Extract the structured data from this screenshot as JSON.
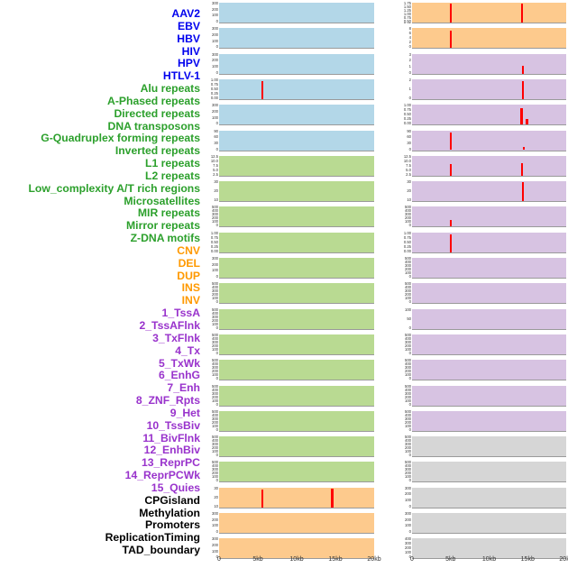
{
  "figure": {
    "background": "#ffffff",
    "spike_color": "#ff0000",
    "group_colors": {
      "virus_label": "#0000ee",
      "repeat_label": "#2ca02c",
      "sv_label": "#ff9900",
      "chromatin_label": "#9933cc",
      "other_label": "#000000",
      "virus_fill": "#b3d7e8",
      "repeat_fill": "#b9da92",
      "sv_fill": "#fdca8d",
      "chromatin_fill": "#d7c3e2",
      "other_fill": "#d6d6d6"
    }
  },
  "chart_data": {
    "type": "area",
    "title": "",
    "xlabel": "",
    "ylabel": "",
    "x_range_kb": [
      0,
      20
    ],
    "x_tick_labels": [
      "0",
      "5kb",
      "10kb",
      "15kb",
      "20kb"
    ],
    "x_tick_positions_kb": [
      0,
      5,
      10,
      15,
      20
    ],
    "layout": {
      "columns": 2,
      "rows_per_column": 22,
      "order": "column-major",
      "grid": false,
      "legend": "none"
    },
    "tracks": [
      {
        "label": "AAV2",
        "group": "virus",
        "label_color": "#0000ee",
        "fill": "#b3d7e8",
        "y_ticks": [
          "300",
          "200",
          "100",
          "0"
        ],
        "spikes": []
      },
      {
        "label": "EBV",
        "group": "virus",
        "label_color": "#0000ee",
        "fill": "#b3d7e8",
        "y_ticks": [
          "300",
          "200",
          "100",
          "0"
        ],
        "spikes": []
      },
      {
        "label": "HBV",
        "group": "virus",
        "label_color": "#0000ee",
        "fill": "#b3d7e8",
        "y_ticks": [
          "300",
          "200",
          "100",
          "0"
        ],
        "spikes": []
      },
      {
        "label": "HIV",
        "group": "virus",
        "label_color": "#0000ee",
        "fill": "#b3d7e8",
        "y_ticks": [
          "1.00",
          "0.75",
          "0.50",
          "0.25",
          "0.00"
        ],
        "spikes": [
          {
            "x_kb": 5.6,
            "h": 0.92
          }
        ]
      },
      {
        "label": "HPV",
        "group": "virus",
        "label_color": "#0000ee",
        "fill": "#b3d7e8",
        "y_ticks": [
          "300",
          "200",
          "100",
          "0"
        ],
        "spikes": []
      },
      {
        "label": "HTLV-1",
        "group": "virus",
        "label_color": "#0000ee",
        "fill": "#b3d7e8",
        "y_ticks": [
          "90",
          "60",
          "30",
          "0"
        ],
        "spikes": []
      },
      {
        "label": "Alu repeats",
        "group": "repeat",
        "label_color": "#2ca02c",
        "fill": "#b9da92",
        "y_ticks": [
          "12.5",
          "10.0",
          "7.5",
          "5.0",
          "2.5"
        ],
        "spikes": []
      },
      {
        "label": "A-Phased repeats",
        "group": "repeat",
        "label_color": "#2ca02c",
        "fill": "#b9da92",
        "y_ticks": [
          "30",
          "20",
          "10"
        ],
        "spikes": []
      },
      {
        "label": "Directed repeats",
        "group": "repeat",
        "label_color": "#2ca02c",
        "fill": "#b9da92",
        "y_ticks": [
          "500",
          "400",
          "300",
          "200",
          "100",
          "0"
        ],
        "spikes": []
      },
      {
        "label": "DNA transposons",
        "group": "repeat",
        "label_color": "#2ca02c",
        "fill": "#b9da92",
        "y_ticks": [
          "1.00",
          "0.75",
          "0.50",
          "0.25",
          "0.00"
        ],
        "spikes": []
      },
      {
        "label": "G-Quadruplex forming repeats",
        "group": "repeat",
        "label_color": "#2ca02c",
        "fill": "#b9da92",
        "y_ticks": [
          "300",
          "200",
          "100",
          "0"
        ],
        "spikes": []
      },
      {
        "label": "Inverted repeats",
        "group": "repeat",
        "label_color": "#2ca02c",
        "fill": "#b9da92",
        "y_ticks": [
          "500",
          "400",
          "300",
          "200",
          "100",
          "0"
        ],
        "spikes": []
      },
      {
        "label": "L1 repeats",
        "group": "repeat",
        "label_color": "#2ca02c",
        "fill": "#b9da92",
        "y_ticks": [
          "500",
          "400",
          "300",
          "200",
          "100",
          "0"
        ],
        "spikes": []
      },
      {
        "label": "L2 repeats",
        "group": "repeat",
        "label_color": "#2ca02c",
        "fill": "#b9da92",
        "y_ticks": [
          "500",
          "400",
          "300",
          "200",
          "100",
          "0"
        ],
        "spikes": []
      },
      {
        "label": "Low_complexity A/T rich regions",
        "group": "repeat",
        "label_color": "#2ca02c",
        "fill": "#b9da92",
        "y_ticks": [
          "500",
          "400",
          "300",
          "200",
          "100",
          "0"
        ],
        "spikes": []
      },
      {
        "label": "Microsatellites",
        "group": "repeat",
        "label_color": "#2ca02c",
        "fill": "#b9da92",
        "y_ticks": [
          "500",
          "400",
          "300",
          "200",
          "100",
          "0"
        ],
        "spikes": []
      },
      {
        "label": "MIR repeats",
        "group": "repeat",
        "label_color": "#2ca02c",
        "fill": "#b9da92",
        "y_ticks": [
          "500",
          "400",
          "300",
          "200",
          "100",
          "0"
        ],
        "spikes": []
      },
      {
        "label": "Mirror repeats",
        "group": "repeat",
        "label_color": "#2ca02c",
        "fill": "#b9da92",
        "y_ticks": [
          "500",
          "400",
          "300",
          "200",
          "100",
          "0"
        ],
        "spikes": []
      },
      {
        "label": "Z-DNA motifs",
        "group": "repeat",
        "label_color": "#2ca02c",
        "fill": "#b9da92",
        "y_ticks": [
          "500",
          "400",
          "300",
          "200",
          "100",
          "0"
        ],
        "spikes": []
      },
      {
        "label": "CNV",
        "group": "sv",
        "label_color": "#ff9900",
        "fill": "#fdca8d",
        "y_ticks": [
          "30",
          "20",
          "10"
        ],
        "spikes": [
          {
            "x_kb": 5.6,
            "h": 0.88
          },
          {
            "x_kb": 14.6,
            "h": 0.95
          }
        ]
      },
      {
        "label": "DEL",
        "group": "sv",
        "label_color": "#ff9900",
        "fill": "#fdca8d",
        "y_ticks": [
          "300",
          "200",
          "100",
          "0"
        ],
        "spikes": []
      },
      {
        "label": "DUP",
        "group": "sv",
        "label_color": "#ff9900",
        "fill": "#fdca8d",
        "y_ticks": [
          "300",
          "200",
          "100",
          "0"
        ],
        "spikes": []
      },
      {
        "label": "INS",
        "group": "sv",
        "label_color": "#ff9900",
        "fill": "#fdca8d",
        "y_ticks": [
          "1.75",
          "1.50",
          "1.25",
          "1.00",
          "0.75",
          "0.50",
          "0.25"
        ],
        "spikes": [
          {
            "x_kb": 5.0,
            "h": 0.95
          },
          {
            "x_kb": 14.3,
            "h": 0.97
          }
        ]
      },
      {
        "label": "INV",
        "group": "sv",
        "label_color": "#ff9900",
        "fill": "#fdca8d",
        "y_ticks": [
          "8",
          "6",
          "4",
          "2",
          "0"
        ],
        "spikes": [
          {
            "x_kb": 5.0,
            "h": 0.9
          }
        ]
      },
      {
        "label": "1_TssA",
        "group": "chromatin",
        "label_color": "#9933cc",
        "fill": "#d7c3e2",
        "y_ticks": [
          "3",
          "2",
          "1",
          "0"
        ],
        "spikes": [
          {
            "x_kb": 14.4,
            "h": 0.4
          }
        ]
      },
      {
        "label": "2_TssAFlnk",
        "group": "chromatin",
        "label_color": "#9933cc",
        "fill": "#d7c3e2",
        "y_ticks": [
          "2",
          "1",
          "0"
        ],
        "spikes": [
          {
            "x_kb": 14.4,
            "h": 0.9
          }
        ]
      },
      {
        "label": "3_TxFlnk",
        "group": "chromatin",
        "label_color": "#9933cc",
        "fill": "#d7c3e2",
        "y_ticks": [
          "1.00",
          "0.75",
          "0.50",
          "0.25",
          "0.00"
        ],
        "spikes": [
          {
            "x_kb": 14.2,
            "h": 0.85
          },
          {
            "x_kb": 14.9,
            "h": 0.3
          }
        ]
      },
      {
        "label": "4_Tx",
        "group": "chromatin",
        "label_color": "#9933cc",
        "fill": "#d7c3e2",
        "y_ticks": [
          "90",
          "60",
          "30",
          "0"
        ],
        "spikes": [
          {
            "x_kb": 5.0,
            "h": 0.9
          },
          {
            "x_kb": 14.5,
            "h": 0.15
          }
        ]
      },
      {
        "label": "5_TxWk",
        "group": "chromatin",
        "label_color": "#9933cc",
        "fill": "#d7c3e2",
        "y_ticks": [
          "12.5",
          "10.0",
          "7.5",
          "5.0",
          "2.5"
        ],
        "spikes": [
          {
            "x_kb": 5.0,
            "h": 0.6
          },
          {
            "x_kb": 14.3,
            "h": 0.65
          }
        ]
      },
      {
        "label": "6_EnhG",
        "group": "chromatin",
        "label_color": "#9933cc",
        "fill": "#d7c3e2",
        "y_ticks": [
          "30",
          "20",
          "10"
        ],
        "spikes": [
          {
            "x_kb": 14.4,
            "h": 0.95
          }
        ]
      },
      {
        "label": "7_Enh",
        "group": "chromatin",
        "label_color": "#9933cc",
        "fill": "#d7c3e2",
        "y_ticks": [
          "500",
          "400",
          "300",
          "200",
          "100",
          "0"
        ],
        "spikes": [
          {
            "x_kb": 5.0,
            "h": 0.35
          }
        ]
      },
      {
        "label": "8_ZNF_Rpts",
        "group": "chromatin",
        "label_color": "#9933cc",
        "fill": "#d7c3e2",
        "y_ticks": [
          "1.00",
          "0.75",
          "0.50",
          "0.25",
          "0.00"
        ],
        "spikes": [
          {
            "x_kb": 5.0,
            "h": 0.9
          }
        ]
      },
      {
        "label": "9_Het",
        "group": "chromatin",
        "label_color": "#9933cc",
        "fill": "#d7c3e2",
        "y_ticks": [
          "500",
          "400",
          "300",
          "200",
          "100",
          "0"
        ],
        "spikes": []
      },
      {
        "label": "10_TssBiv",
        "group": "chromatin",
        "label_color": "#9933cc",
        "fill": "#d7c3e2",
        "y_ticks": [
          "500",
          "400",
          "300",
          "200",
          "100",
          "0"
        ],
        "spikes": []
      },
      {
        "label": "11_BivFlnk",
        "group": "chromatin",
        "label_color": "#9933cc",
        "fill": "#d7c3e2",
        "y_ticks": [
          "100",
          "50",
          "0"
        ],
        "spikes": []
      },
      {
        "label": "12_EnhBiv",
        "group": "chromatin",
        "label_color": "#9933cc",
        "fill": "#d7c3e2",
        "y_ticks": [
          "500",
          "400",
          "300",
          "200",
          "100",
          "0"
        ],
        "spikes": []
      },
      {
        "label": "13_ReprPC",
        "group": "chromatin",
        "label_color": "#9933cc",
        "fill": "#d7c3e2",
        "y_ticks": [
          "500",
          "400",
          "300",
          "200",
          "100",
          "0"
        ],
        "spikes": []
      },
      {
        "label": "14_ReprPCWk",
        "group": "chromatin",
        "label_color": "#9933cc",
        "fill": "#d7c3e2",
        "y_ticks": [
          "500",
          "400",
          "300",
          "200",
          "100",
          "0"
        ],
        "spikes": []
      },
      {
        "label": "15_Quies",
        "group": "chromatin",
        "label_color": "#9933cc",
        "fill": "#d7c3e2",
        "y_ticks": [
          "500",
          "400",
          "300",
          "200",
          "100",
          "0"
        ],
        "spikes": []
      },
      {
        "label": "CPGisland",
        "group": "other",
        "label_color": "#000000",
        "fill": "#d6d6d6",
        "y_ticks": [
          "500",
          "400",
          "300",
          "200",
          "100",
          "0"
        ],
        "spikes": []
      },
      {
        "label": "Methylation",
        "group": "other",
        "label_color": "#000000",
        "fill": "#d6d6d6",
        "y_ticks": [
          "500",
          "400",
          "300",
          "200",
          "100",
          "0"
        ],
        "spikes": []
      },
      {
        "label": "Promoters",
        "group": "other",
        "label_color": "#000000",
        "fill": "#d6d6d6",
        "y_ticks": [
          "300",
          "200",
          "100",
          "0"
        ],
        "spikes": []
      },
      {
        "label": "ReplicationTiming",
        "group": "other",
        "label_color": "#000000",
        "fill": "#d6d6d6",
        "y_ticks": [
          "300",
          "200",
          "100",
          "0"
        ],
        "spikes": []
      },
      {
        "label": "TAD_boundary",
        "group": "other",
        "label_color": "#000000",
        "fill": "#d6d6d6",
        "y_ticks": [
          "400",
          "300",
          "200",
          "100",
          "0"
        ],
        "spikes": []
      }
    ]
  }
}
